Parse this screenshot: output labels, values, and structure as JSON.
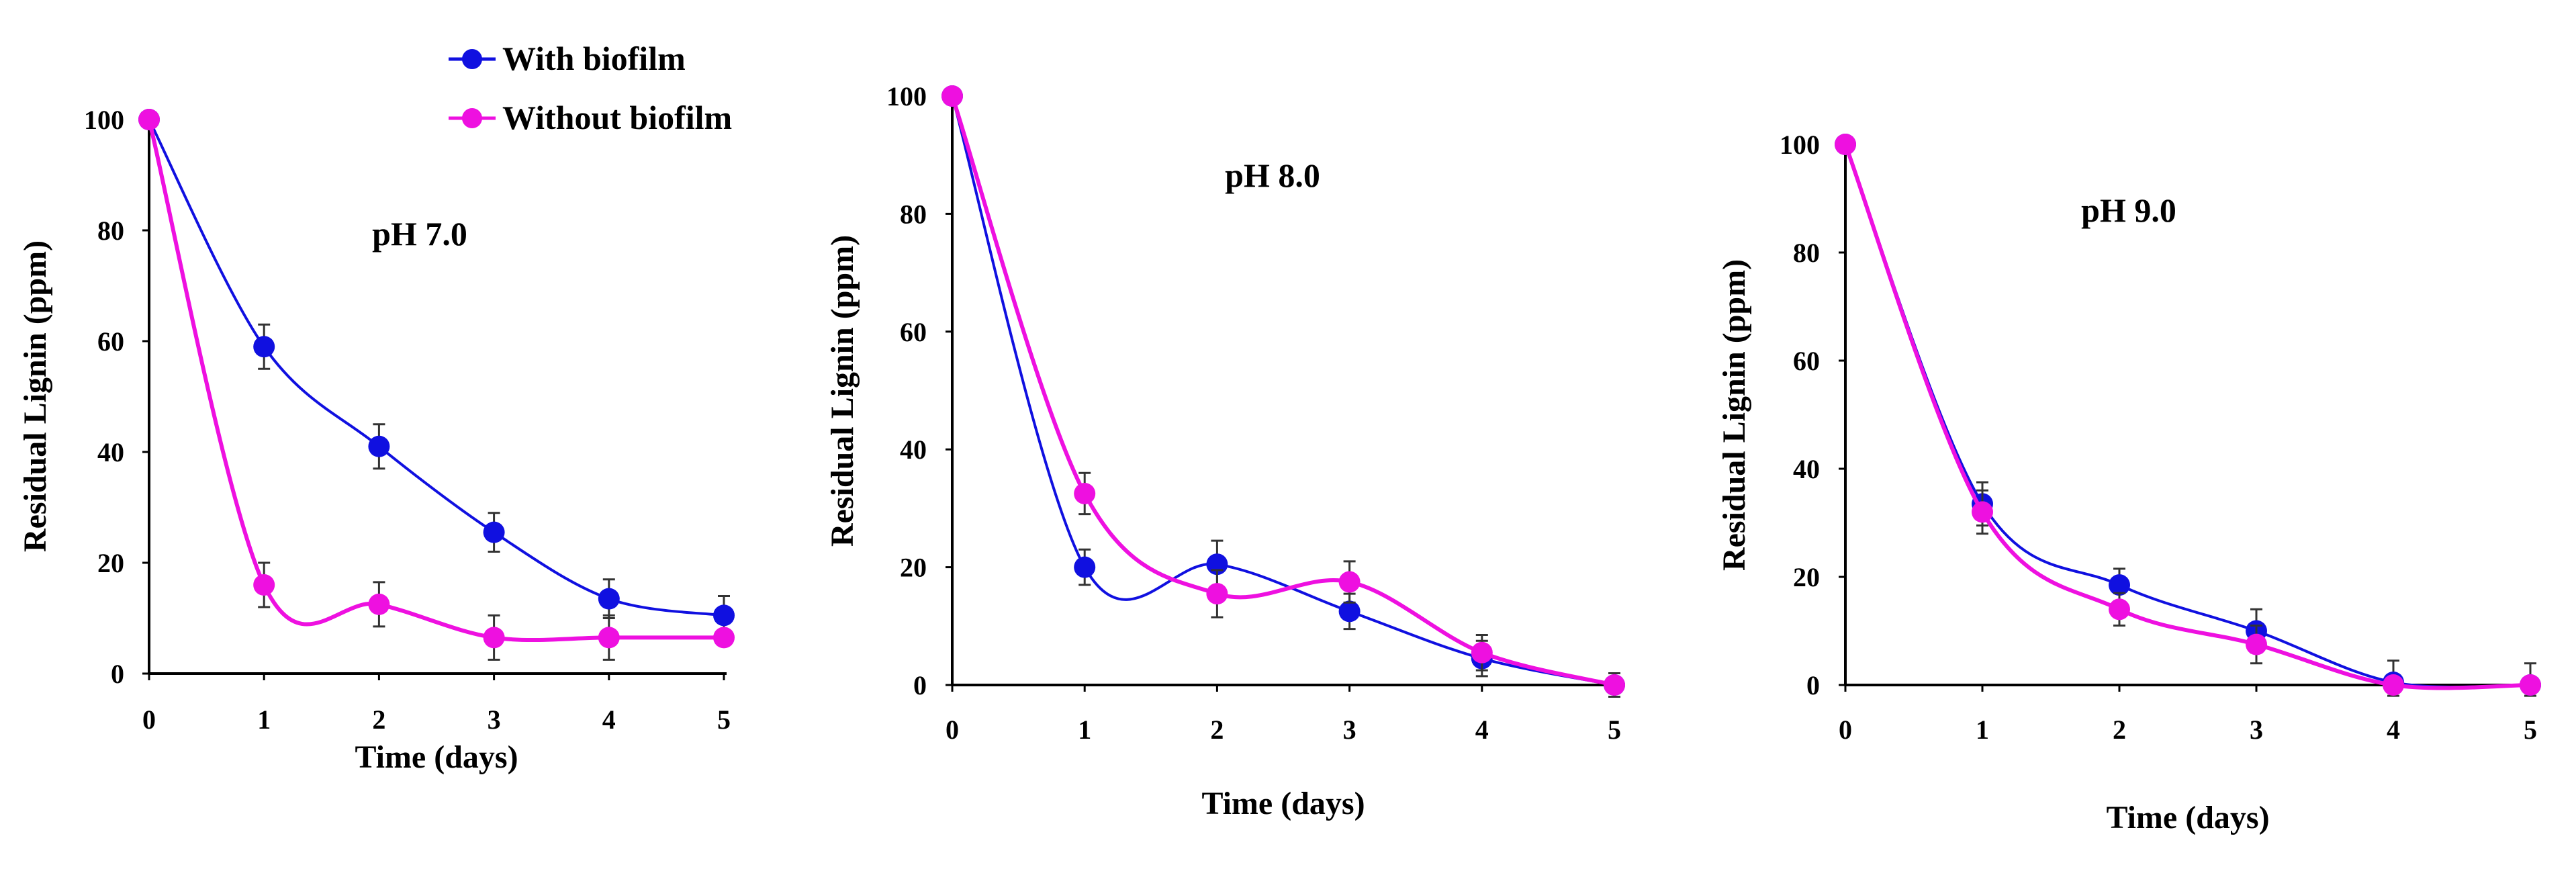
{
  "legend": {
    "entries": [
      {
        "label": "With biofilm",
        "color": "#1010e0"
      },
      {
        "label": "Without biofilm",
        "color": "#ee10e0"
      }
    ]
  },
  "chart_data": [
    {
      "type": "line",
      "label": "pH 7.0",
      "xlabel": "Time (days)",
      "ylabel": "Residual  Lignin (ppm)",
      "x": [
        0,
        1,
        2,
        3,
        4,
        5
      ],
      "xlim": [
        0,
        5
      ],
      "ylim": [
        0,
        100
      ],
      "yticks": [
        0,
        20,
        40,
        60,
        80,
        100
      ],
      "grid": false,
      "series": [
        {
          "name": "With biofilm",
          "color": "#1010e0",
          "values": [
            100,
            59,
            41,
            25.5,
            13.5,
            10.5
          ],
          "errors": [
            0,
            4,
            4,
            3.5,
            3.5,
            3.5
          ]
        },
        {
          "name": "Without biofilm",
          "color": "#ee10e0",
          "values": [
            100,
            16,
            12.5,
            6.5,
            6.5,
            6.5
          ],
          "errors": [
            0,
            4,
            4,
            4,
            4,
            0
          ]
        }
      ]
    },
    {
      "type": "line",
      "label": "pH  8.0",
      "xlabel": "Time (days)",
      "ylabel": "Residual Lignin (ppm)",
      "x": [
        0,
        1,
        2,
        3,
        4,
        5
      ],
      "xlim": [
        0,
        5
      ],
      "ylim": [
        0,
        100
      ],
      "yticks": [
        0,
        20,
        40,
        60,
        80,
        100
      ],
      "grid": false,
      "series": [
        {
          "name": "With biofilm",
          "color": "#1010e0",
          "values": [
            100,
            20,
            20.5,
            12.5,
            4.5,
            0
          ],
          "errors": [
            0,
            3,
            4,
            3,
            3,
            2
          ]
        },
        {
          "name": "Without biofilm",
          "color": "#ee10e0",
          "values": [
            100,
            32.5,
            15.5,
            17.5,
            5.5,
            0
          ],
          "errors": [
            0,
            3.5,
            4,
            3.5,
            3,
            2
          ]
        }
      ]
    },
    {
      "type": "line",
      "label": "pH 9.0",
      "xlabel": "Time (days)",
      "ylabel": "Residual  Lignin (ppm)",
      "x": [
        0,
        1,
        2,
        3,
        4,
        5
      ],
      "xlim": [
        0,
        5
      ],
      "ylim": [
        0,
        100
      ],
      "yticks": [
        0,
        20,
        40,
        60,
        80,
        100
      ],
      "grid": false,
      "series": [
        {
          "name": "With biofilm",
          "color": "#1010e0",
          "values": [
            100,
            33.5,
            18.5,
            10,
            0.5,
            0
          ],
          "errors": [
            0,
            4,
            3,
            4,
            4,
            4
          ]
        },
        {
          "name": "Without biofilm",
          "color": "#ee10e0",
          "values": [
            100,
            32,
            14,
            7.5,
            0,
            0
          ],
          "errors": [
            0,
            4,
            3,
            3.5,
            0,
            0
          ]
        }
      ]
    }
  ]
}
